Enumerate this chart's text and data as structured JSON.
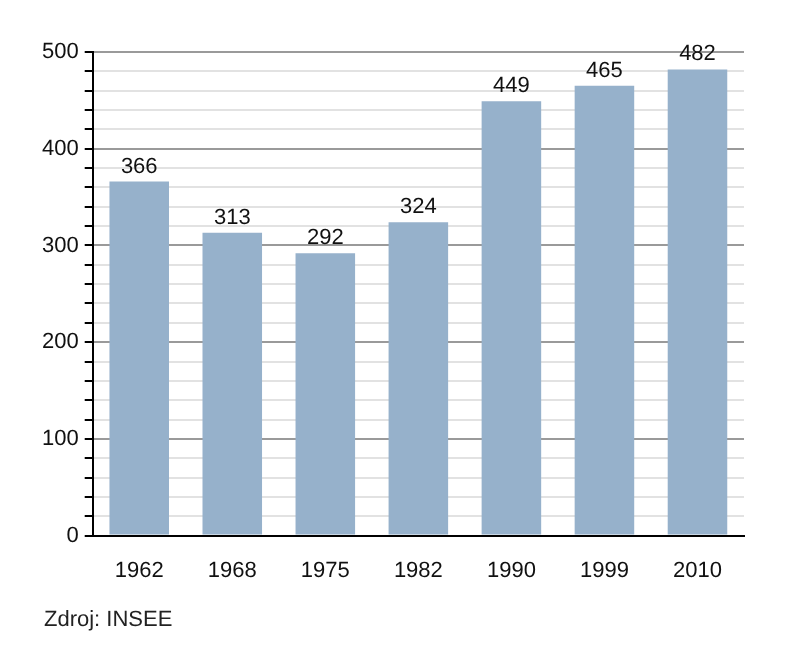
{
  "chart_data": {
    "type": "bar",
    "categories": [
      "1962",
      "1968",
      "1975",
      "1982",
      "1990",
      "1999",
      "2010"
    ],
    "values": [
      366,
      313,
      292,
      324,
      449,
      465,
      482
    ],
    "color": "#96b1cb",
    "data_labels": true,
    "ylim": [
      0,
      500
    ],
    "yticks": [
      0,
      {
        "value": 20,
        "label": null
      },
      {
        "value": 40,
        "label": null
      },
      {
        "value": 60,
        "label": null
      },
      {
        "value": 80,
        "label": null
      },
      100,
      {
        "value": 120,
        "label": null
      },
      {
        "value": 140,
        "label": null
      },
      {
        "value": 160,
        "label": null
      },
      {
        "value": 180,
        "label": null
      },
      200,
      {
        "value": 220,
        "label": null
      },
      {
        "value": 240,
        "label": null
      },
      {
        "value": 260,
        "label": null
      },
      {
        "value": 280,
        "label": null
      },
      300,
      {
        "value": 320,
        "label": null
      },
      {
        "value": 340,
        "label": null
      },
      {
        "value": 360,
        "label": null
      },
      {
        "value": 380,
        "label": null
      },
      400,
      {
        "value": 420,
        "label": null
      },
      {
        "value": 440,
        "label": null
      },
      {
        "value": 460,
        "label": null
      },
      {
        "value": 480,
        "label": null
      },
      500
    ],
    "grid": "y",
    "annotations": [
      "Zdroj: INSEE"
    ]
  }
}
